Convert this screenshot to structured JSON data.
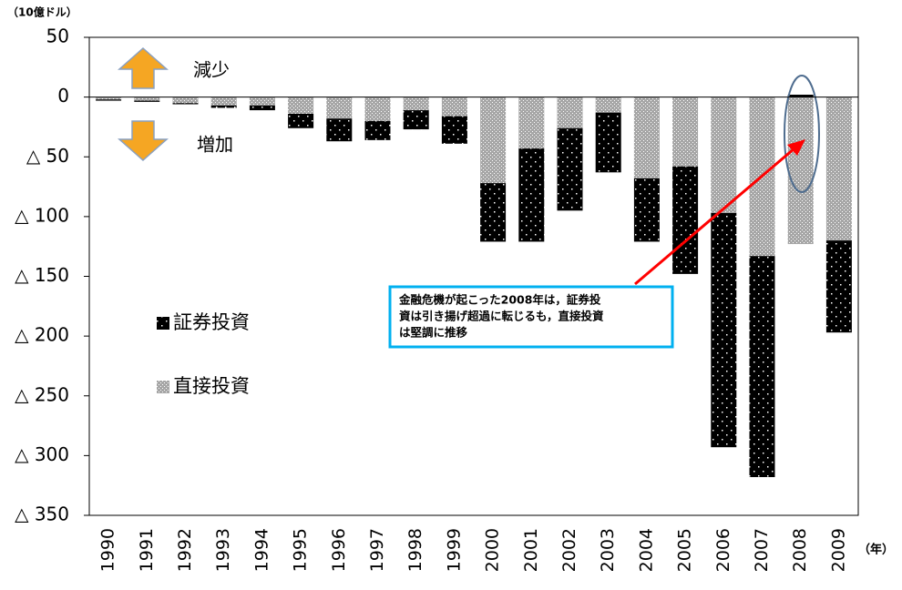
{
  "chart_data": {
    "type": "bar",
    "stacked": true,
    "unit_label": "（10億ドル）",
    "x_unit_label": "（年）",
    "categories": [
      "1990",
      "1991",
      "1992",
      "1993",
      "1994",
      "1995",
      "1996",
      "1997",
      "1998",
      "1999",
      "2000",
      "2001",
      "2002",
      "2003",
      "2004",
      "2005",
      "2006",
      "2007",
      "2008",
      "2009"
    ],
    "series": [
      {
        "name": "直接投資",
        "color": "#a6a6a6",
        "values": [
          -2,
          -3,
          -5,
          -7,
          -7,
          -14,
          -18,
          -20,
          -11,
          -16,
          -72,
          -43,
          -26,
          -13,
          -68,
          -58,
          -97,
          -133,
          -123,
          -120
        ]
      },
      {
        "name": "証券投資",
        "color": "#000000",
        "values": [
          -1,
          -1,
          -1,
          -2,
          -4,
          -12,
          -19,
          -16,
          -16,
          -23,
          -49,
          -78,
          -69,
          -50,
          -53,
          -90,
          -196,
          -185,
          2,
          -77
        ]
      }
    ],
    "ylim": [
      -350,
      50
    ],
    "yticks": [
      50,
      0,
      {
        "value": -50,
        "label": "△ 50"
      },
      {
        "value": -100,
        "label": "△ 100"
      },
      {
        "value": -150,
        "label": "△ 150"
      },
      {
        "value": -200,
        "label": "△ 200"
      },
      {
        "value": -250,
        "label": "△ 250"
      },
      {
        "value": -300,
        "label": "△ 300"
      },
      {
        "value": -350,
        "label": "△ 350"
      }
    ],
    "annotations": {
      "decrease": "減少",
      "increase": "増加",
      "note": [
        "金融危機が起こった2008年は，証券投",
        "資は引き揚げ超過に転じるも，直接投資",
        "は堅調に推移"
      ]
    }
  }
}
